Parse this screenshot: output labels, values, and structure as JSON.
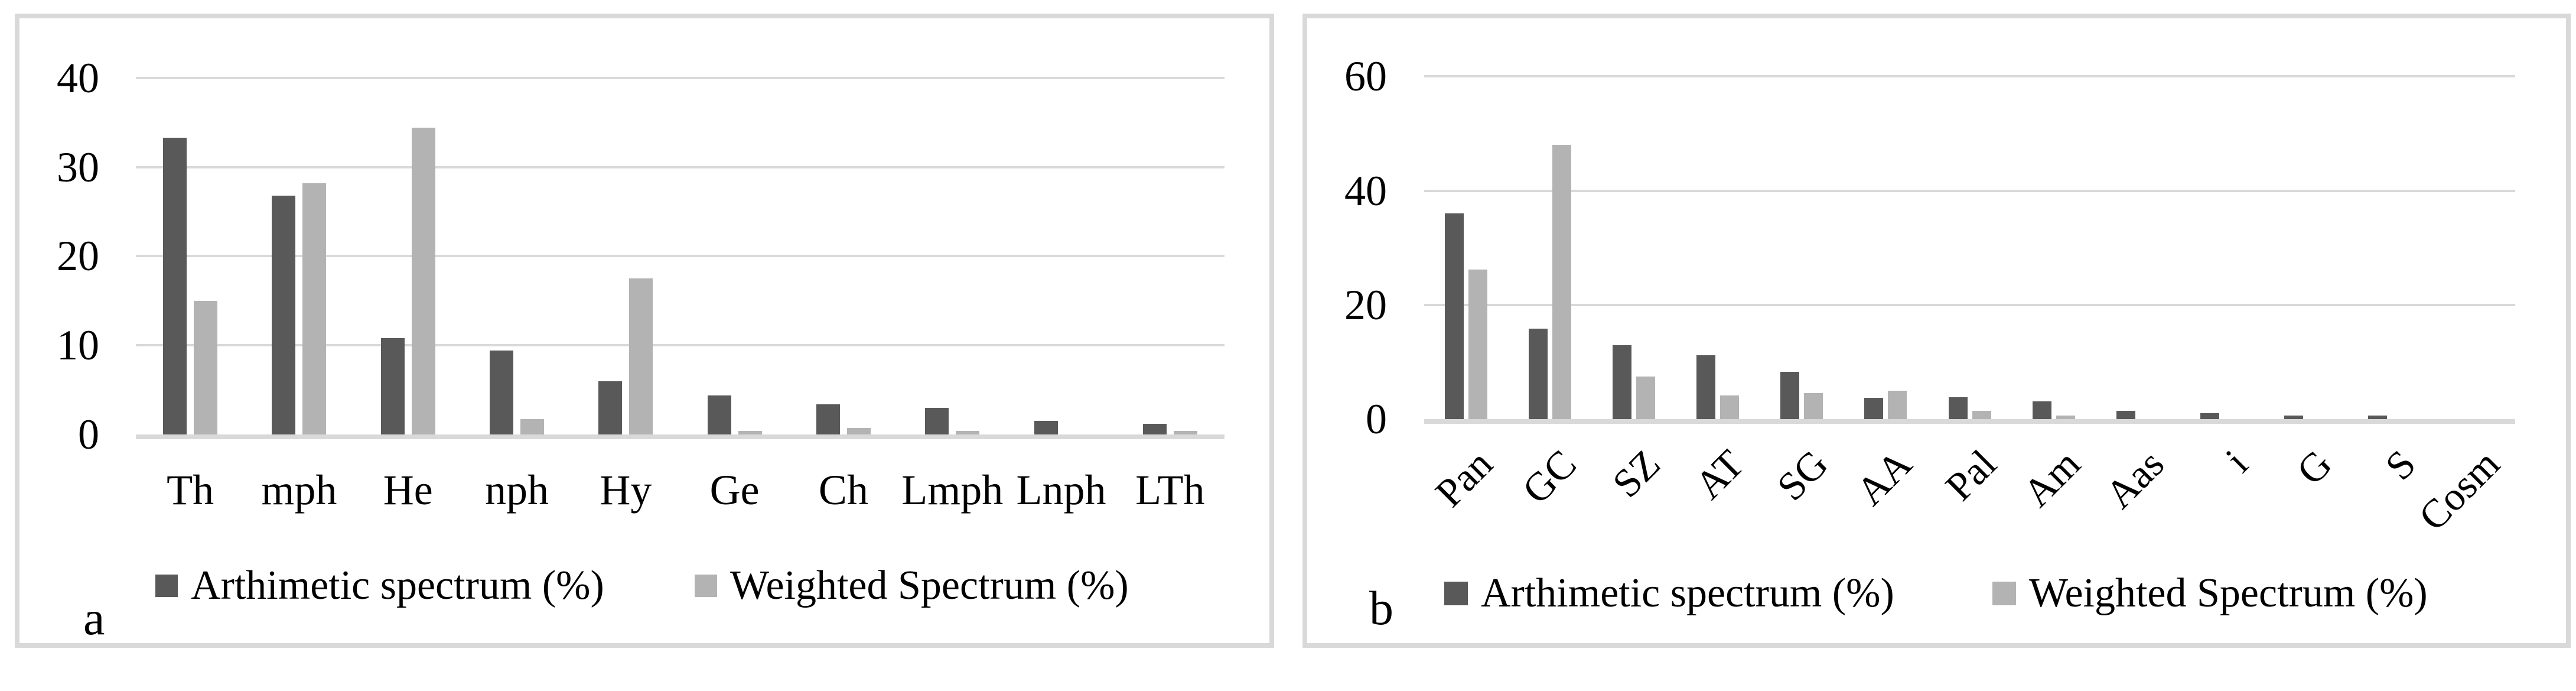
{
  "figure": {
    "panel_a_corner_label": "a",
    "panel_b_corner_label": "b"
  },
  "colors": {
    "arithmetic_series": "#595959",
    "weighted_series": "#b3b3b3",
    "gridline": "#d9d9d9",
    "panel_border": "#d9d9d9"
  },
  "chart_data": [
    {
      "id": "a",
      "type": "bar",
      "corner_label": "a",
      "title": "",
      "xlabel": "",
      "ylabel": "",
      "ylim": [
        0,
        40
      ],
      "yticks": [
        0,
        10,
        20,
        30,
        40
      ],
      "grid": true,
      "legend_position": "bottom",
      "category_label_rotation": 0,
      "categories": [
        "Th",
        "mph",
        "He",
        "nph",
        "Hy",
        "Ge",
        "Ch",
        "Lmph",
        "Lnph",
        "LTh"
      ],
      "series": [
        {
          "name": "Arthimetic spectrum (%)",
          "color": "#595959",
          "values": [
            33.3,
            26.8,
            10.8,
            9.4,
            6.0,
            4.4,
            3.4,
            3.0,
            1.5,
            1.2
          ]
        },
        {
          "name": "Weighted Spectrum (%)",
          "color": "#b3b3b3",
          "values": [
            15.0,
            28.2,
            34.4,
            1.7,
            17.5,
            0.4,
            0.7,
            0.4,
            0,
            0.4
          ]
        }
      ]
    },
    {
      "id": "b",
      "type": "bar",
      "corner_label": "b",
      "title": "",
      "xlabel": "",
      "ylabel": "",
      "ylim": [
        0,
        60
      ],
      "yticks": [
        0,
        20,
        40,
        60
      ],
      "grid": true,
      "legend_position": "bottom",
      "category_label_rotation": 45,
      "categories": [
        "Pan",
        "GC",
        "SZ",
        "AT",
        "SG",
        "AA",
        "Pal",
        "Am",
        "Aas",
        "i",
        "G",
        "S",
        "Cosm"
      ],
      "series": [
        {
          "name": "Arthimetic spectrum (%)",
          "color": "#595959",
          "values": [
            36.0,
            15.8,
            12.9,
            11.2,
            8.3,
            3.7,
            3.8,
            3.1,
            1.4,
            1.0,
            0.6,
            0.6,
            0
          ]
        },
        {
          "name": "Weighted Spectrum (%)",
          "color": "#b3b3b3",
          "values": [
            26.2,
            48.0,
            7.5,
            4.1,
            4.6,
            5.0,
            1.4,
            0.6,
            0,
            0,
            0,
            0,
            0
          ]
        }
      ]
    }
  ]
}
